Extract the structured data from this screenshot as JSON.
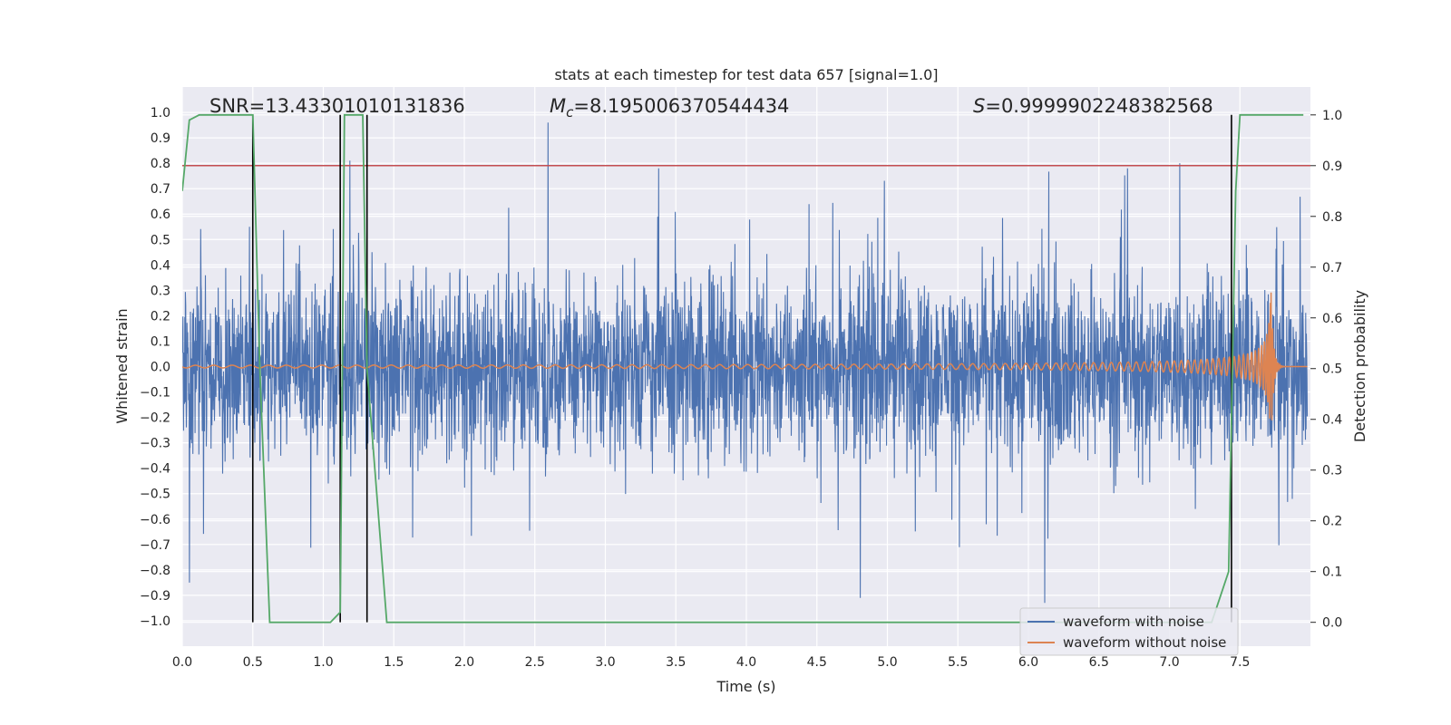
{
  "chart_data": {
    "type": "line",
    "title": "stats at each timestep for test data 657 [signal=1.0]",
    "xlabel": "Time (s)",
    "ylabel": "Whitened strain",
    "y2label": "Detection probability",
    "xlim": [
      0.0,
      8.0
    ],
    "ylim": [
      -1.1,
      1.1
    ],
    "y2lim": [
      -0.047,
      1.055
    ],
    "xticks": [
      "0.0",
      "0.5",
      "1.0",
      "1.5",
      "2.0",
      "2.5",
      "3.0",
      "3.5",
      "4.0",
      "4.5",
      "5.0",
      "5.5",
      "6.0",
      "6.5",
      "7.0",
      "7.5"
    ],
    "yticks": [
      "−1.0",
      "−0.9",
      "−0.8",
      "−0.7",
      "−0.6",
      "−0.5",
      "−0.4",
      "−0.3",
      "−0.2",
      "−0.1",
      "0.0",
      "0.1",
      "0.2",
      "0.3",
      "0.4",
      "0.5",
      "0.6",
      "0.7",
      "0.8",
      "0.9",
      "1.0"
    ],
    "y2ticks": [
      "0.0",
      "0.1",
      "0.2",
      "0.3",
      "0.4",
      "0.5",
      "0.6",
      "0.7",
      "0.8",
      "0.9",
      "1.0"
    ],
    "annotations": {
      "snr": "SNR=13.43301010131836",
      "mc_symbol": "M",
      "mc_sub": "c",
      "mc_value": "=8.195006370544434",
      "s_symbol": "S",
      "s_value": "=0.9999902248382568"
    },
    "legend": {
      "location": "lower-right",
      "entries": [
        "waveform with noise",
        "waveform without noise"
      ]
    },
    "threshold_probability": 0.9,
    "vertical_markers_s": [
      0.5,
      1.12,
      1.31,
      7.44
    ],
    "noisy_waveform": {
      "name": "waveform with noise",
      "color": "#4c72b0",
      "typical_amplitude": 0.35,
      "spikes": [
        [
          2.6,
          0.96
        ],
        [
          6.13,
          -0.93
        ],
        [
          4.82,
          -0.91
        ],
        [
          6.72,
          0.78
        ],
        [
          7.09,
          0.8
        ],
        [
          1.19,
          0.81
        ],
        [
          0.05,
          -0.85
        ]
      ]
    },
    "chirp_waveform": {
      "name": "waveform without noise",
      "color": "#dd8452",
      "merger_time_s": 7.72,
      "peak_amplitude": 0.32
    },
    "detection_probability": {
      "name": "detection probability",
      "color": "#55a868",
      "t": [
        0.0,
        0.05,
        0.12,
        0.5,
        0.55,
        0.62,
        1.05,
        1.12,
        1.15,
        1.28,
        1.31,
        1.45,
        3.9,
        7.3,
        7.42,
        7.47,
        7.5,
        7.95
      ],
      "p": [
        0.85,
        0.99,
        1.0,
        1.0,
        0.5,
        0.0,
        0.0,
        0.02,
        1.0,
        1.0,
        0.5,
        0.0,
        0.0,
        0.0,
        0.1,
        0.85,
        1.0,
        1.0
      ]
    },
    "colors": {
      "threshold": "#c44e52",
      "marker": "#000000",
      "background": "#eaeaf2",
      "grid": "#ffffff"
    }
  }
}
